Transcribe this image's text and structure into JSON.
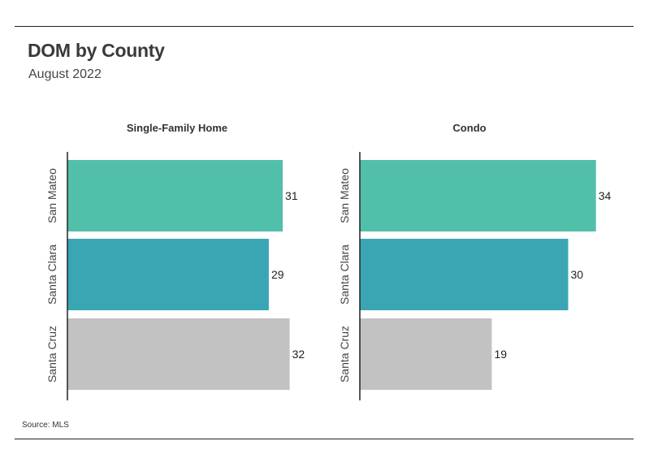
{
  "title": "DOM by County",
  "subtitle": "August 2022",
  "source": "Source:  MLS",
  "chart_data": [
    {
      "type": "bar",
      "orientation": "horizontal",
      "title": "Single-Family Home",
      "categories": [
        "San Mateo",
        "Santa Clara",
        "Santa Cruz"
      ],
      "values": [
        31,
        29,
        32
      ],
      "colors": [
        "#52bfaa",
        "#3aa6b4",
        "#c2c2c2"
      ]
    },
    {
      "type": "bar",
      "orientation": "horizontal",
      "title": "Condo",
      "categories": [
        "San Mateo",
        "Santa Clara",
        "Santa Cruz"
      ],
      "values": [
        34,
        30,
        19
      ],
      "colors": [
        "#52bfaa",
        "#3aa6b4",
        "#c2c2c2"
      ]
    }
  ]
}
